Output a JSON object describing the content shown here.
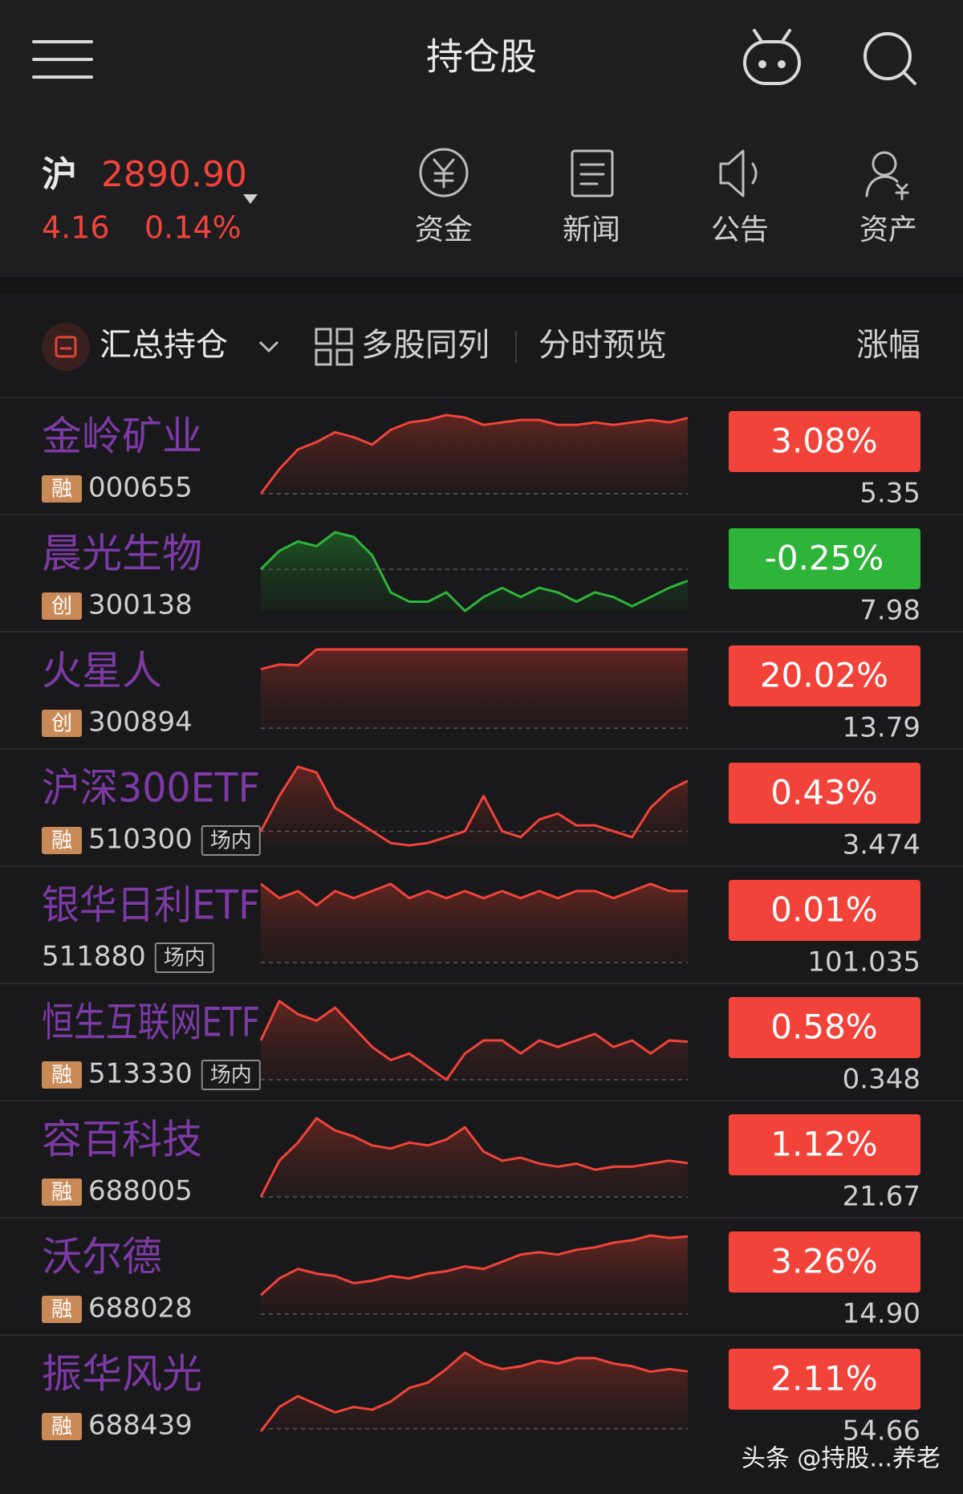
{
  "header": {
    "title": "持仓股"
  },
  "index": {
    "name": "沪",
    "value": "2890.90",
    "change": "4.16",
    "change_pct": "0.14%"
  },
  "shortcuts": [
    "资金",
    "新闻",
    "公告",
    "资产"
  ],
  "tabs": {
    "summary": "汇总持仓",
    "multi": "多股同列",
    "preview": "分时预览",
    "sort": "涨幅"
  },
  "rows": [
    {
      "name": "金岭矿业",
      "tag": "融",
      "code": "000655",
      "change_pct": "3.08%",
      "price": "5.35",
      "sparkline": [
        0,
        1.0,
        1.8,
        2.1,
        2.5,
        2.3,
        2.0,
        2.6,
        2.9,
        3.0,
        3.2,
        3.1,
        2.8,
        2.9,
        3.0,
        3.0,
        2.8,
        2.8,
        2.9,
        2.8,
        2.9,
        3.0,
        2.9,
        3.08
      ]
    },
    {
      "name": "晨光生物",
      "tag": "创",
      "code": "300138",
      "change_pct": "-0.25%",
      "price": "7.98",
      "sparkline": [
        0,
        0.4,
        0.6,
        0.5,
        0.8,
        0.7,
        0.3,
        -0.5,
        -0.7,
        -0.7,
        -0.5,
        -0.9,
        -0.6,
        -0.4,
        -0.6,
        -0.4,
        -0.5,
        -0.7,
        -0.5,
        -0.6,
        -0.8,
        -0.6,
        -0.4,
        -0.25
      ]
    },
    {
      "name": "火星人",
      "tag": "创",
      "code": "300894",
      "change_pct": "20.02%",
      "price": "13.79",
      "sparkline": [
        15.0,
        16.2,
        16.0,
        20.02,
        20.02,
        20.02,
        20.02,
        20.02,
        20.02,
        20.02,
        20.02,
        20.02,
        20.02,
        20.02,
        20.02,
        20.02,
        20.02,
        20.02,
        20.02,
        20.02,
        20.02,
        20.02,
        20.02,
        20.02
      ]
    },
    {
      "name": "沪深300ETF",
      "tag": "融",
      "code": "510300",
      "market": "场内",
      "change_pct": "0.43%",
      "price": "3.474",
      "sparkline": [
        0,
        0.3,
        0.55,
        0.5,
        0.2,
        0.1,
        0.0,
        -0.1,
        -0.12,
        -0.1,
        -0.05,
        0.0,
        0.3,
        0.0,
        -0.05,
        0.1,
        0.15,
        0.05,
        0.05,
        0.0,
        -0.05,
        0.2,
        0.35,
        0.43
      ]
    },
    {
      "name": "银华日利ETF",
      "code": "511880",
      "market": "场内",
      "change_pct": "0.01%",
      "price": "101.035",
      "sparkline": [
        0.011,
        0.009,
        0.01,
        0.008,
        0.01,
        0.009,
        0.01,
        0.011,
        0.009,
        0.01,
        0.009,
        0.01,
        0.009,
        0.01,
        0.009,
        0.01,
        0.009,
        0.01,
        0.01,
        0.009,
        0.01,
        0.011,
        0.01,
        0.01
      ]
    },
    {
      "name": "恒生互联网ETF",
      "tag": "融",
      "code": "513330",
      "market": "场内",
      "change_pct": "0.58%",
      "price": "0.348",
      "sparkline": [
        0.6,
        1.2,
        1.0,
        0.9,
        1.1,
        0.8,
        0.5,
        0.3,
        0.4,
        0.2,
        0.0,
        0.4,
        0.6,
        0.6,
        0.4,
        0.6,
        0.5,
        0.6,
        0.7,
        0.5,
        0.6,
        0.4,
        0.6,
        0.58
      ]
    },
    {
      "name": "容百科技",
      "tag": "融",
      "code": "688005",
      "change_pct": "1.12%",
      "price": "21.67",
      "sparkline": [
        0,
        1.2,
        1.8,
        2.6,
        2.2,
        2.0,
        1.7,
        1.6,
        1.8,
        1.7,
        1.9,
        2.3,
        1.5,
        1.2,
        1.3,
        1.1,
        1.0,
        1.1,
        0.9,
        1.0,
        1.0,
        1.1,
        1.2,
        1.12
      ]
    },
    {
      "name": "沃尔德",
      "tag": "融",
      "code": "688028",
      "change_pct": "3.26%",
      "price": "14.90",
      "sparkline": [
        0.8,
        1.5,
        1.9,
        1.7,
        1.6,
        1.3,
        1.4,
        1.6,
        1.5,
        1.7,
        1.8,
        2.0,
        1.9,
        2.2,
        2.5,
        2.6,
        2.5,
        2.7,
        2.8,
        3.0,
        3.1,
        3.3,
        3.2,
        3.26
      ]
    },
    {
      "name": "振华风光",
      "tag": "融",
      "code": "688439",
      "change_pct": "2.11%",
      "price": "54.66",
      "sparkline": [
        -0.1,
        0.8,
        1.2,
        0.9,
        0.6,
        0.8,
        0.7,
        1.0,
        1.5,
        1.7,
        2.2,
        2.8,
        2.4,
        2.2,
        2.3,
        2.5,
        2.4,
        2.6,
        2.6,
        2.4,
        2.3,
        2.1,
        2.2,
        2.11
      ]
    }
  ],
  "watermark": "头条 @持股...养老"
}
